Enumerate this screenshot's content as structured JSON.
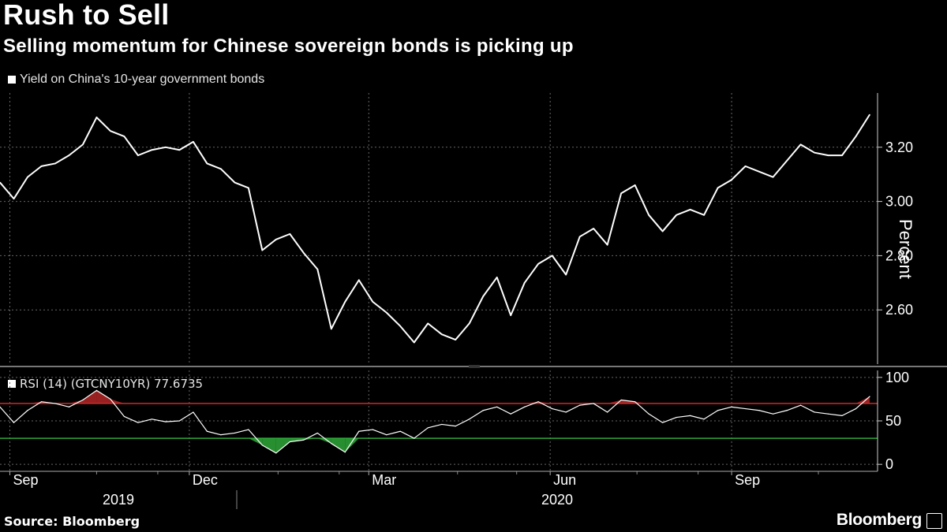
{
  "header": {
    "title": "Rush to Sell",
    "subtitle": "Selling momentum for Chinese sovereign bonds is picking up"
  },
  "footer": {
    "source": "Source: Bloomberg",
    "brand": "Bloomberg"
  },
  "colors": {
    "background": "#000000",
    "line": "#ffffff",
    "overbought": "#cc2b2b",
    "oversold": "#2fa83a",
    "grid": "#666666"
  },
  "chart_data": [
    {
      "type": "line",
      "legend": "Yield on China's 10-year government bonds",
      "ylabel": "Percent",
      "ylim": [
        2.4,
        3.4
      ],
      "yticks": [
        "3.20",
        "3.00",
        "2.80",
        "2.60"
      ],
      "ytick_values": [
        3.2,
        3.0,
        2.8,
        2.6
      ],
      "xlabels": [
        "Sep",
        "Dec",
        "Mar",
        "Jun",
        "Sep"
      ],
      "xlabel_positions": [
        "2019-09-01",
        "2019-12-01",
        "2020-03-01",
        "2020-06-01",
        "2020-09-01"
      ],
      "years": [
        "2019",
        "2020"
      ],
      "x_range": [
        "2019-08-27",
        "2020-11-14"
      ],
      "series": [
        {
          "name": "",
          "x": [
            "2019-08-27",
            "2019-09-03",
            "2019-09-10",
            "2019-09-17",
            "2019-09-24",
            "2019-10-01",
            "2019-10-08",
            "2019-10-15",
            "2019-10-22",
            "2019-10-29",
            "2019-11-05",
            "2019-11-12",
            "2019-11-19",
            "2019-11-26",
            "2019-12-03",
            "2019-12-10",
            "2019-12-17",
            "2019-12-24",
            "2019-12-31",
            "2020-01-07",
            "2020-01-14",
            "2020-01-21",
            "2020-01-28",
            "2020-02-04",
            "2020-02-11",
            "2020-02-18",
            "2020-02-25",
            "2020-03-03",
            "2020-03-10",
            "2020-03-17",
            "2020-03-24",
            "2020-03-31",
            "2020-04-07",
            "2020-04-14",
            "2020-04-21",
            "2020-04-28",
            "2020-05-05",
            "2020-05-12",
            "2020-05-19",
            "2020-05-26",
            "2020-06-02",
            "2020-06-09",
            "2020-06-16",
            "2020-06-23",
            "2020-06-30",
            "2020-07-07",
            "2020-07-14",
            "2020-07-21",
            "2020-07-28",
            "2020-08-04",
            "2020-08-11",
            "2020-08-18",
            "2020-08-25",
            "2020-09-01",
            "2020-09-08",
            "2020-09-15",
            "2020-09-22",
            "2020-09-29",
            "2020-10-06",
            "2020-10-13",
            "2020-10-20",
            "2020-10-27",
            "2020-11-03",
            "2020-11-10"
          ],
          "values": [
            3.07,
            3.01,
            3.09,
            3.13,
            3.14,
            3.17,
            3.21,
            3.31,
            3.26,
            3.24,
            3.17,
            3.19,
            3.2,
            3.19,
            3.22,
            3.14,
            3.12,
            3.07,
            3.05,
            2.82,
            2.86,
            2.88,
            2.81,
            2.75,
            2.53,
            2.63,
            2.71,
            2.63,
            2.59,
            2.54,
            2.48,
            2.55,
            2.51,
            2.49,
            2.55,
            2.65,
            2.72,
            2.58,
            2.7,
            2.77,
            2.8,
            2.73,
            2.87,
            2.9,
            2.84,
            3.03,
            3.06,
            2.95,
            2.89,
            2.95,
            2.97,
            2.95,
            3.05,
            3.08,
            3.13,
            3.11,
            3.09,
            3.15,
            3.21,
            3.18,
            3.17,
            3.17,
            3.24,
            3.32
          ]
        }
      ]
    },
    {
      "type": "line",
      "legend": "RSI (14) (GTCNY10YR) 77.6735",
      "ylim": [
        -8,
        108
      ],
      "yticks": [
        "100",
        "50",
        "0"
      ],
      "ytick_values": [
        100,
        50,
        0
      ],
      "overbought": 70,
      "oversold": 30,
      "series": [
        {
          "name": "",
          "x": [
            "2019-08-27",
            "2019-09-03",
            "2019-09-10",
            "2019-09-17",
            "2019-09-24",
            "2019-10-01",
            "2019-10-08",
            "2019-10-15",
            "2019-10-22",
            "2019-10-29",
            "2019-11-05",
            "2019-11-12",
            "2019-11-19",
            "2019-11-26",
            "2019-12-03",
            "2019-12-10",
            "2019-12-17",
            "2019-12-24",
            "2019-12-31",
            "2020-01-07",
            "2020-01-14",
            "2020-01-21",
            "2020-01-28",
            "2020-02-04",
            "2020-02-11",
            "2020-02-18",
            "2020-02-25",
            "2020-03-03",
            "2020-03-10",
            "2020-03-17",
            "2020-03-24",
            "2020-03-31",
            "2020-04-07",
            "2020-04-14",
            "2020-04-21",
            "2020-04-28",
            "2020-05-05",
            "2020-05-12",
            "2020-05-19",
            "2020-05-26",
            "2020-06-02",
            "2020-06-09",
            "2020-06-16",
            "2020-06-23",
            "2020-06-30",
            "2020-07-07",
            "2020-07-14",
            "2020-07-21",
            "2020-07-28",
            "2020-08-04",
            "2020-08-11",
            "2020-08-18",
            "2020-08-25",
            "2020-09-01",
            "2020-09-08",
            "2020-09-15",
            "2020-09-22",
            "2020-09-29",
            "2020-10-06",
            "2020-10-13",
            "2020-10-20",
            "2020-10-27",
            "2020-11-03",
            "2020-11-10"
          ],
          "values": [
            66,
            48,
            62,
            72,
            70,
            66,
            74,
            85,
            75,
            55,
            48,
            52,
            49,
            50,
            60,
            38,
            34,
            36,
            40,
            22,
            13,
            26,
            28,
            36,
            24,
            14,
            38,
            40,
            34,
            38,
            30,
            42,
            46,
            44,
            52,
            62,
            66,
            58,
            66,
            72,
            64,
            60,
            68,
            70,
            60,
            74,
            72,
            58,
            48,
            54,
            56,
            52,
            62,
            66,
            64,
            62,
            58,
            62,
            68,
            60,
            58,
            56,
            64,
            78
          ]
        }
      ]
    }
  ]
}
